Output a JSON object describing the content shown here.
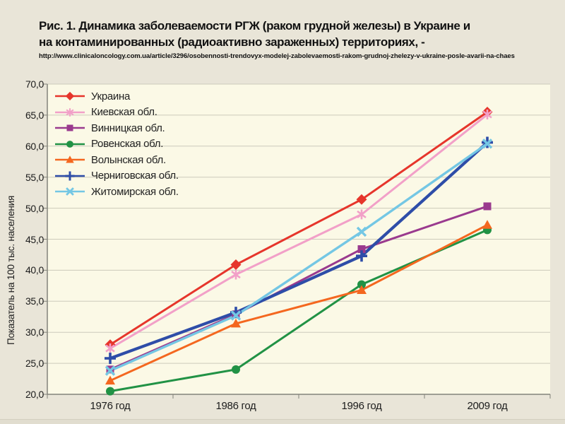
{
  "figure": {
    "title_line1": "Рис. 1. Динамика заболеваемости РГЖ (раком грудной железы) в Украине и",
    "title_line2": "на контаминированных (радиоактивно зараженных) территориях, -",
    "source_url": "http://www.clinicaloncology.com.ua/article/3296/osobennosti-trendovyx-modelej-zabolevaemosti-rakom-grudnoj-zhelezy-v-ukraine-posle-avarii-na-chaes"
  },
  "colors": {
    "page_bg": "#e9e5d8",
    "plot_bg": "#fbf9e6",
    "grid": "#cccabb",
    "axis": "#83837a",
    "text": "#1c1c1c"
  },
  "chart_data": {
    "type": "line",
    "title": "Динамика заболеваемости РГЖ в Украине и на контаминированных территориях",
    "xlabel": "",
    "ylabel": "Показатель на 100 тыс. населения",
    "categories": [
      "1976 год",
      "1986 год",
      "1996 год",
      "2009 год"
    ],
    "ylim": [
      20,
      70
    ],
    "ytick_step": 5,
    "ytick_labels": [
      "20,0",
      "25,0",
      "30,0",
      "35,0",
      "40,0",
      "45,0",
      "50,0",
      "55,0",
      "60,0",
      "65,0",
      "70,0"
    ],
    "grid": true,
    "legend_position": "top-left-inside",
    "series": [
      {
        "name": "Украина",
        "color": "#e6352b",
        "marker": "diamond",
        "line_width": 3,
        "values": [
          28.0,
          40.9,
          51.4,
          65.5
        ]
      },
      {
        "name": "Киевская обл.",
        "color": "#f2a0c8",
        "marker": "asterisk",
        "line_width": 3,
        "values": [
          27.4,
          39.3,
          49.0,
          65.1
        ]
      },
      {
        "name": "Винницкая обл.",
        "color": "#9a3a8e",
        "marker": "square",
        "line_width": 3,
        "values": [
          24.0,
          32.9,
          43.4,
          50.3
        ]
      },
      {
        "name": "Ровенская обл.",
        "color": "#219245",
        "marker": "circle",
        "line_width": 3,
        "values": [
          20.5,
          24.0,
          37.7,
          46.5
        ]
      },
      {
        "name": "Волынская обл.",
        "color": "#f4671f",
        "marker": "triangle",
        "line_width": 3,
        "values": [
          22.2,
          31.4,
          36.8,
          47.3
        ]
      },
      {
        "name": "Черниговская обл.",
        "color": "#2e4da8",
        "marker": "plus",
        "line_width": 4.2,
        "values": [
          25.8,
          33.2,
          42.3,
          60.6
        ]
      },
      {
        "name": "Житомирская обл.",
        "color": "#74c7e4",
        "marker": "x",
        "line_width": 3.4,
        "values": [
          23.8,
          32.7,
          46.2,
          60.4
        ]
      }
    ]
  }
}
